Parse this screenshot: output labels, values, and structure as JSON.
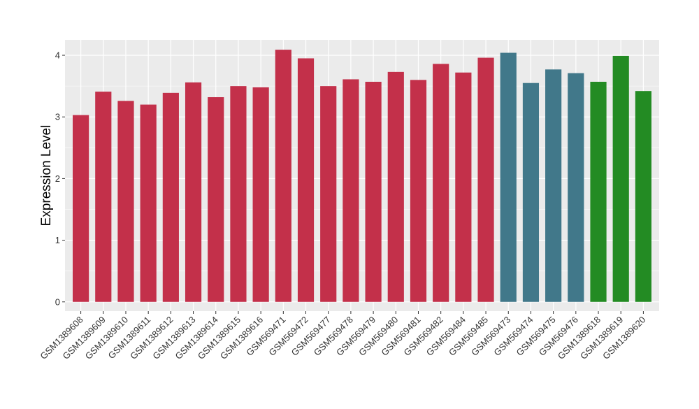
{
  "chart_data": {
    "type": "bar",
    "title": "",
    "xlabel": "",
    "ylabel": "Expression Level",
    "ylim": [
      -0.15,
      4.25
    ],
    "yticks": [
      0,
      1,
      2,
      3,
      4
    ],
    "grid": true,
    "legend": "none",
    "colors": {
      "red": "#c3304a",
      "teal": "#41788a",
      "green": "#238b23",
      "panel_bg": "#ebebeb",
      "grid": "#ffffff"
    },
    "categories": [
      "GSM1389608",
      "GSM1389609",
      "GSM1389610",
      "GSM1389611",
      "GSM1389612",
      "GSM1389613",
      "GSM1389614",
      "GSM1389615",
      "GSM1389616",
      "GSM569471",
      "GSM569472",
      "GSM569477",
      "GSM569478",
      "GSM569479",
      "GSM569480",
      "GSM569481",
      "GSM569482",
      "GSM569484",
      "GSM569485",
      "GSM569473",
      "GSM569474",
      "GSM569475",
      "GSM569476",
      "GSM1389618",
      "GSM1389619",
      "GSM1389620"
    ],
    "values": [
      3.03,
      3.41,
      3.26,
      3.2,
      3.39,
      3.56,
      3.32,
      3.5,
      3.48,
      4.09,
      3.95,
      3.5,
      3.61,
      3.57,
      3.73,
      3.6,
      3.86,
      3.72,
      3.96,
      4.04,
      3.55,
      3.77,
      3.71,
      3.57,
      3.99,
      3.42
    ],
    "bar_colors": [
      "red",
      "red",
      "red",
      "red",
      "red",
      "red",
      "red",
      "red",
      "red",
      "red",
      "red",
      "red",
      "red",
      "red",
      "red",
      "red",
      "red",
      "red",
      "red",
      "teal",
      "teal",
      "teal",
      "teal",
      "green",
      "green",
      "green"
    ]
  }
}
